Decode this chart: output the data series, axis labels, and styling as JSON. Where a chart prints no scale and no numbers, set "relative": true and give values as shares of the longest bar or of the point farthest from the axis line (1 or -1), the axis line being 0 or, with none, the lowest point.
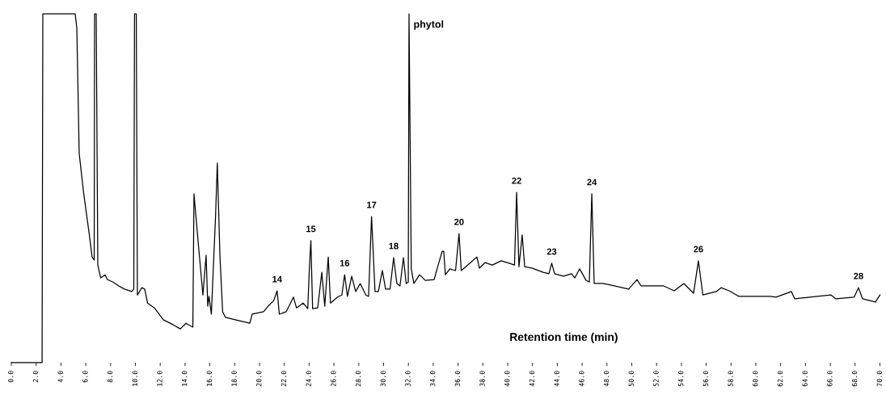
{
  "chart_data": {
    "type": "line",
    "relative": true,
    "xlabel": "Retention time (min)",
    "xlim": [
      0,
      70
    ],
    "xticks": [
      {
        "value": 0,
        "label": "0.0"
      },
      {
        "value": 2,
        "label": "2.0"
      },
      {
        "value": 4,
        "label": "4.0"
      },
      {
        "value": 6,
        "label": "6.0"
      },
      {
        "value": 8,
        "label": "8.0"
      },
      {
        "value": 10,
        "label": "10.0"
      },
      {
        "value": 12,
        "label": "12.0"
      },
      {
        "value": 14,
        "label": "14.0"
      },
      {
        "value": 16,
        "label": "16.0"
      },
      {
        "value": 18,
        "label": "18.0"
      },
      {
        "value": 20,
        "label": "20.0"
      },
      {
        "value": 22,
        "label": "22.0"
      },
      {
        "value": 24,
        "label": "24.0"
      },
      {
        "value": 26,
        "label": "26.0"
      },
      {
        "value": 28,
        "label": "28.0"
      },
      {
        "value": 30,
        "label": "30.0"
      },
      {
        "value": 32,
        "label": "32.0"
      },
      {
        "value": 34,
        "label": "34.0"
      },
      {
        "value": 36,
        "label": "36.0"
      },
      {
        "value": 38,
        "label": "38.0"
      },
      {
        "value": 40,
        "label": "40.0"
      },
      {
        "value": 42,
        "label": "42.0"
      },
      {
        "value": 44,
        "label": "44.0"
      },
      {
        "value": 46,
        "label": "46.0"
      },
      {
        "value": 48,
        "label": "48.0"
      },
      {
        "value": 50,
        "label": "50.0"
      },
      {
        "value": 52,
        "label": "52.0"
      },
      {
        "value": 54,
        "label": "54.0"
      },
      {
        "value": 56,
        "label": "56.0"
      },
      {
        "value": 58,
        "label": "58.0"
      },
      {
        "value": 60,
        "label": "60.0"
      },
      {
        "value": 62,
        "label": "62.0"
      },
      {
        "value": 64,
        "label": "64.0"
      },
      {
        "value": 66,
        "label": "66.0"
      },
      {
        "value": 68,
        "label": "68.0"
      },
      {
        "value": 70,
        "label": "70.0"
      }
    ],
    "tick_labels": "x",
    "marker": "none",
    "line_style": "solid",
    "series": [
      {
        "color": "#000000",
        "x": [
          0,
          2.48,
          2.54,
          5.15,
          5.28,
          5.47,
          5.83,
          6.29,
          6.51,
          6.68,
          6.71,
          6.84,
          6.97,
          7.2,
          7.56,
          7.75,
          8.21,
          8.66,
          9.12,
          9.71,
          9.87,
          9.93,
          10.07,
          10.16,
          10.52,
          10.75,
          10.98,
          11.53,
          12.25,
          13.03,
          13.62,
          14.07,
          14.63,
          14.72,
          15.09,
          15.44,
          15.7,
          15.83,
          15.93,
          16.12,
          16.46,
          16.6,
          16.81,
          17.03,
          17.26,
          18.05,
          19.22,
          19.41,
          20.33,
          20.69,
          21.15,
          21.42,
          21.6,
          22.15,
          22.74,
          22.98,
          23.52,
          23.89,
          24.01,
          24.14,
          24.28,
          24.69,
          25.02,
          25.26,
          25.54,
          25.72,
          26.29,
          26.64,
          26.86,
          27.09,
          27.43,
          27.75,
          28.12,
          28.57,
          28.79,
          29.03,
          29.31,
          29.58,
          29.9,
          30.16,
          30.52,
          30.81,
          31.07,
          31.32,
          31.6,
          31.82,
          31.99,
          32.05,
          32.23,
          32.44,
          32.9,
          33.36,
          34.07,
          34.4,
          34.72,
          34.85,
          34.98,
          35.34,
          35.8,
          36.08,
          36.26,
          36.94,
          37.52,
          37.72,
          38.18,
          38.76,
          39.48,
          40.13,
          40.55,
          40.72,
          40.91,
          41.17,
          41.37,
          41.95,
          42.87,
          43.32,
          43.55,
          43.78,
          44.5,
          45.15,
          45.41,
          45.8,
          46.32,
          46.58,
          46.78,
          46.97,
          47.69,
          48.6,
          49.75,
          50.42,
          50.75,
          51.79,
          52.57,
          53.42,
          54.2,
          54.98,
          55.37,
          55.73,
          56.81,
          57.2,
          57.85,
          58.63,
          59.8,
          61.17,
          61.63,
          62.87,
          63.13,
          64.36,
          66.06,
          66.45,
          67.92,
          68.27,
          68.6,
          69.64,
          70
        ],
        "values": [
          0,
          0,
          1,
          1,
          0.958,
          0.6,
          0.486,
          0.366,
          0.303,
          0.294,
          1,
          1,
          0.28,
          0.243,
          0.252,
          0.238,
          0.231,
          0.22,
          0.211,
          0.204,
          0.211,
          1,
          1,
          0.194,
          0.215,
          0.211,
          0.171,
          0.157,
          0.123,
          0.109,
          0.097,
          0.113,
          0.102,
          0.484,
          0.333,
          0.194,
          0.308,
          0.162,
          0.19,
          0.139,
          0.421,
          0.572,
          0.308,
          0.146,
          0.13,
          0.123,
          0.113,
          0.139,
          0.146,
          0.162,
          0.178,
          0.206,
          0.139,
          0.146,
          0.188,
          0.157,
          0.171,
          0.155,
          0.264,
          0.35,
          0.155,
          0.157,
          0.259,
          0.162,
          0.303,
          0.171,
          0.188,
          0.194,
          0.252,
          0.19,
          0.248,
          0.204,
          0.227,
          0.194,
          0.19,
          0.419,
          0.204,
          0.204,
          0.264,
          0.211,
          0.211,
          0.301,
          0.227,
          0.22,
          0.301,
          0.227,
          0.231,
          1,
          0.269,
          0.227,
          0.252,
          0.236,
          0.238,
          0.28,
          0.319,
          0.319,
          0.252,
          0.269,
          0.264,
          0.37,
          0.264,
          0.285,
          0.303,
          0.271,
          0.287,
          0.28,
          0.292,
          0.285,
          0.28,
          0.488,
          0.275,
          0.366,
          0.275,
          0.271,
          0.259,
          0.255,
          0.285,
          0.255,
          0.248,
          0.255,
          0.243,
          0.269,
          0.236,
          0.231,
          0.484,
          0.227,
          0.227,
          0.22,
          0.211,
          0.238,
          0.22,
          0.22,
          0.22,
          0.206,
          0.227,
          0.199,
          0.292,
          0.194,
          0.204,
          0.215,
          0.206,
          0.19,
          0.19,
          0.19,
          0.188,
          0.204,
          0.183,
          0.188,
          0.194,
          0.183,
          0.188,
          0.215,
          0.183,
          0.174,
          0.194
        ]
      }
    ],
    "annotations": [
      {
        "text": "phytol",
        "x": 32.05,
        "y": 1
      },
      {
        "text": "14",
        "x": 21.42,
        "y": 0.206
      },
      {
        "text": "15",
        "x": 24.14,
        "y": 0.35
      },
      {
        "text": "16",
        "x": 26.86,
        "y": 0.252
      },
      {
        "text": "17",
        "x": 29.03,
        "y": 0.419
      },
      {
        "text": "18",
        "x": 30.81,
        "y": 0.301
      },
      {
        "text": "20",
        "x": 36.08,
        "y": 0.37
      },
      {
        "text": "22",
        "x": 40.72,
        "y": 0.488
      },
      {
        "text": "23",
        "x": 43.55,
        "y": 0.285
      },
      {
        "text": "24",
        "x": 46.78,
        "y": 0.484
      },
      {
        "text": "26",
        "x": 55.37,
        "y": 0.292
      },
      {
        "text": "28",
        "x": 68.27,
        "y": 0.215
      }
    ]
  }
}
